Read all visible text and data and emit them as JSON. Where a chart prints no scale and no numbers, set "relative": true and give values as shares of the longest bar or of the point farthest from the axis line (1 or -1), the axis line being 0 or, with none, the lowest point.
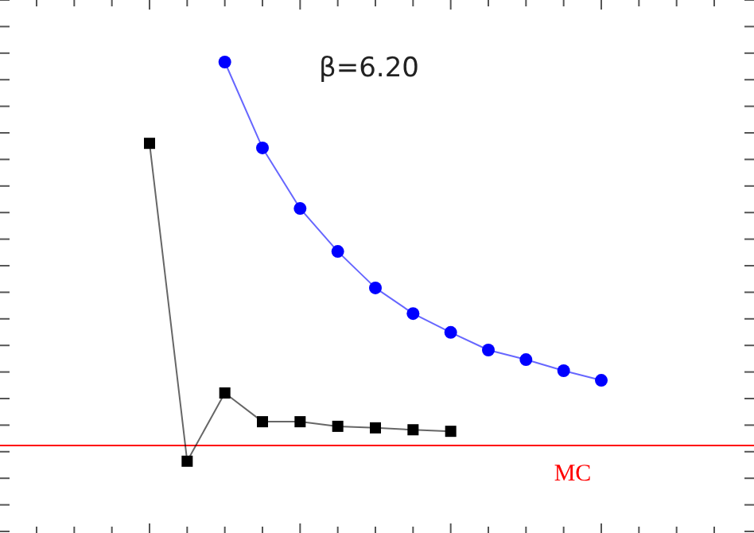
{
  "chart_data": {
    "type": "line",
    "relative": true,
    "categories": [
      null,
      null,
      null,
      null,
      null,
      null,
      null,
      null,
      null,
      null,
      null,
      null,
      null,
      null,
      null,
      null,
      null,
      null,
      null
    ],
    "series": [
      {
        "color": "#0000ff",
        "marker": "circle",
        "values": [
          null,
          null,
          null,
          null,
          null,
          1,
          0.776,
          0.618,
          0.506,
          0.411,
          0.344,
          0.295,
          0.249,
          0.224,
          0.195,
          0.17,
          null,
          null,
          null
        ]
      },
      {
        "color": "#000000",
        "marker": "square",
        "values": [
          null,
          null,
          null,
          0.788,
          -0.041,
          0.137,
          0.062,
          0.062,
          0.05,
          0.046,
          0.041,
          0.037,
          null,
          null,
          null,
          null,
          null,
          null,
          null
        ]
      }
    ],
    "ref_lines": [
      {
        "axis": "y",
        "value": 0,
        "label": "MC",
        "color": "#ff0000"
      }
    ],
    "annotations": [
      "β=6.20"
    ]
  }
}
